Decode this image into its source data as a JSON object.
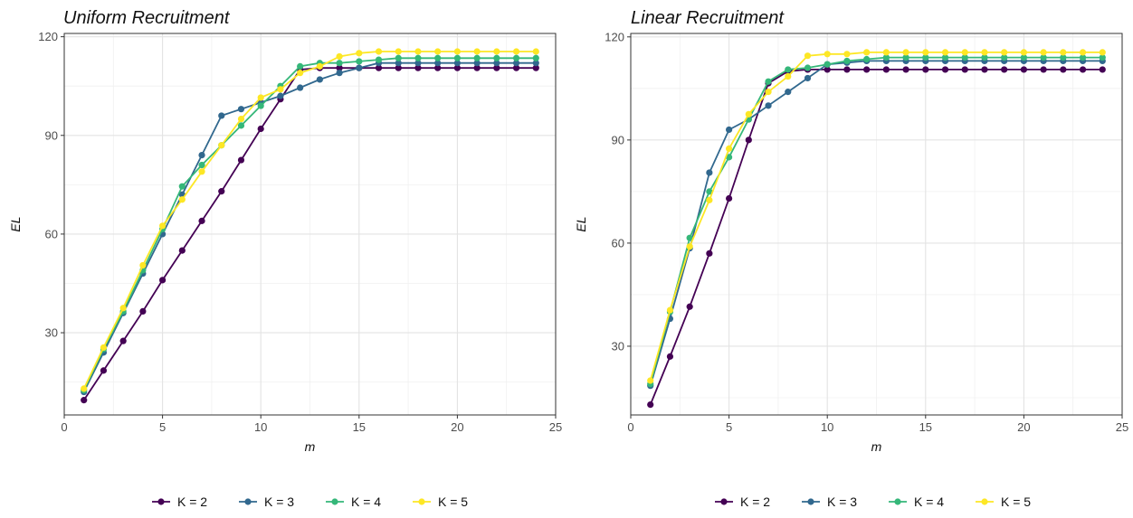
{
  "chart_data": [
    {
      "type": "line",
      "title": "Uniform Recruitment",
      "xlabel": "m",
      "ylabel": "EL",
      "xlim": [
        0,
        25
      ],
      "ylim": [
        5,
        121
      ],
      "x_ticks": [
        0,
        5,
        10,
        15,
        20,
        25
      ],
      "y_ticks": [
        30,
        60,
        90,
        120
      ],
      "x_tick_labels": [
        "0",
        "5",
        "10",
        "15",
        "20",
        "25"
      ],
      "y_tick_labels": [
        "30",
        "60",
        "90",
        "120"
      ],
      "grid": true,
      "legend_position": "bottom",
      "x": [
        1,
        2,
        3,
        4,
        5,
        6,
        7,
        8,
        9,
        10,
        11,
        12,
        13,
        14,
        15,
        16,
        17,
        18,
        19,
        20,
        21,
        22,
        23,
        24
      ],
      "series": [
        {
          "name": "K = 2",
          "color": "#440154",
          "values": [
            9.5,
            18.5,
            27.5,
            36.5,
            46,
            55,
            64,
            73,
            82.5,
            92,
            101,
            110,
            110.5,
            110.5,
            110.5,
            110.5,
            110.5,
            110.5,
            110.5,
            110.5,
            110.5,
            110.5,
            110.5,
            110.5
          ]
        },
        {
          "name": "K = 3",
          "color": "#31688E",
          "values": [
            12,
            24,
            36,
            48,
            60,
            72,
            84,
            96,
            98,
            100,
            102,
            104.5,
            107,
            109,
            110.5,
            112,
            112,
            112,
            112,
            112,
            112,
            112,
            112,
            112
          ]
        },
        {
          "name": "K = 4",
          "color": "#35B779",
          "values": [
            12.5,
            25,
            36.5,
            49,
            61.5,
            74.5,
            81,
            87,
            93,
            99,
            105,
            111,
            112,
            112,
            112.5,
            113,
            113.5,
            113.5,
            113.5,
            113.5,
            113.5,
            113.5,
            113.5,
            113.5
          ]
        },
        {
          "name": "K = 5",
          "color": "#FDE725",
          "values": [
            13,
            25.5,
            37.5,
            50.5,
            62.5,
            70.5,
            79,
            87,
            95,
            101.5,
            104,
            109,
            111,
            114,
            115,
            115.5,
            115.5,
            115.5,
            115.5,
            115.5,
            115.5,
            115.5,
            115.5,
            115.5
          ]
        }
      ],
      "legend_labels": [
        "K = 2",
        "K = 3",
        "K = 4",
        "K = 5"
      ]
    },
    {
      "type": "line",
      "title": "Linear Recruitment",
      "xlabel": "m",
      "ylabel": "EL",
      "xlim": [
        0,
        25
      ],
      "ylim": [
        10,
        121
      ],
      "x_ticks": [
        0,
        5,
        10,
        15,
        20,
        25
      ],
      "y_ticks": [
        30,
        60,
        90,
        120
      ],
      "x_tick_labels": [
        "0",
        "5",
        "10",
        "15",
        "20",
        "25"
      ],
      "y_tick_labels": [
        "30",
        "60",
        "90",
        "120"
      ],
      "grid": true,
      "legend_position": "bottom",
      "x": [
        1,
        2,
        3,
        4,
        5,
        6,
        7,
        8,
        9,
        10,
        11,
        12,
        13,
        14,
        15,
        16,
        17,
        18,
        19,
        20,
        21,
        22,
        23,
        24
      ],
      "series": [
        {
          "name": "K = 2",
          "color": "#440154",
          "values": [
            13,
            27,
            41.5,
            57,
            73,
            90,
            106.5,
            110,
            110.5,
            110.5,
            110.5,
            110.5,
            110.5,
            110.5,
            110.5,
            110.5,
            110.5,
            110.5,
            110.5,
            110.5,
            110.5,
            110.5,
            110.5,
            110.5
          ]
        },
        {
          "name": "K = 3",
          "color": "#31688E",
          "values": [
            18.5,
            38,
            58.5,
            80.5,
            93,
            96,
            100,
            104,
            108,
            112,
            112.5,
            113,
            113,
            113,
            113,
            113,
            113,
            113,
            113,
            113,
            113,
            113,
            113,
            113
          ]
        },
        {
          "name": "K = 4",
          "color": "#35B779",
          "values": [
            19,
            40,
            61.5,
            75,
            85,
            96,
            107,
            110.5,
            111,
            112,
            113,
            113.5,
            114,
            114,
            114,
            114,
            114,
            114,
            114,
            114,
            114,
            114,
            114,
            114
          ]
        },
        {
          "name": "K = 5",
          "color": "#FDE725",
          "values": [
            20,
            40.5,
            59,
            72.5,
            87.5,
            97.5,
            104,
            108.5,
            114.5,
            115,
            115,
            115.5,
            115.5,
            115.5,
            115.5,
            115.5,
            115.5,
            115.5,
            115.5,
            115.5,
            115.5,
            115.5,
            115.5,
            115.5
          ]
        }
      ],
      "legend_labels": [
        "K = 2",
        "K = 3",
        "K = 4",
        "K = 5"
      ]
    }
  ]
}
